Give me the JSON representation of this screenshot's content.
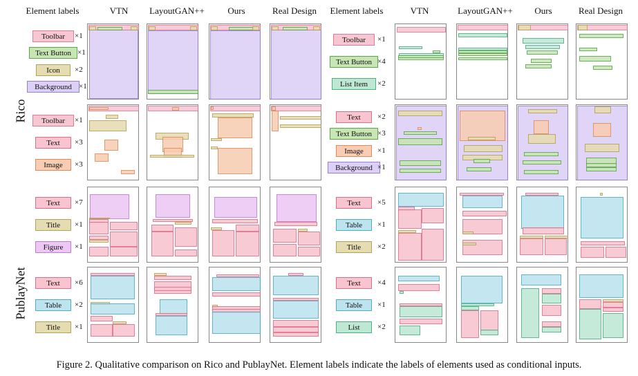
{
  "headers": {
    "left": [
      "Element labels",
      "VTN",
      "LayoutGAN++",
      "Ours",
      "Real Design"
    ],
    "right": [
      "Element labels",
      "VTN",
      "LayoutGAN++",
      "Ours",
      "Real Design"
    ]
  },
  "row_labels": [
    "Rico",
    "PublayNet"
  ],
  "colors": {
    "Toolbar": {
      "fill": "#f7c6d3",
      "stroke": "#e07a95"
    },
    "Text Button": {
      "fill": "#c8e6b4",
      "stroke": "#5aa84a"
    },
    "Icon": {
      "fill": "#e6dcb2",
      "stroke": "#b3a25a"
    },
    "Background": {
      "fill": "#ddd0f7",
      "stroke": "#9a7fd8"
    },
    "Text": {
      "fill": "#f8c4cf",
      "stroke": "#e06d88"
    },
    "Image": {
      "fill": "#f8cdb3",
      "stroke": "#e08a5a"
    },
    "List Item": {
      "fill": "#bfe8d4",
      "stroke": "#4cb084"
    },
    "Title": {
      "fill": "#e6dcb2",
      "stroke": "#b3a25a"
    },
    "Figure": {
      "fill": "#edc8f5",
      "stroke": "#c27ad8"
    },
    "Table": {
      "fill": "#bde3ee",
      "stroke": "#4aaec8"
    },
    "List": {
      "fill": "#bfe8d4",
      "stroke": "#4cb084"
    }
  },
  "caption": "Figure 2. Qualitative comparison on Rico and PublayNet. Element labels indicate the labels of elements used as conditional inputs.",
  "rows": [
    {
      "dataset": "Rico",
      "left": {
        "labels": [
          {
            "name": "Toolbar",
            "count": "×1"
          },
          {
            "name": "Text Button",
            "count": "×1"
          },
          {
            "name": "Icon",
            "count": "×2"
          },
          {
            "name": "Background",
            "count": "×1"
          }
        ]
      },
      "right": {
        "labels": [
          {
            "name": "Toolbar",
            "count": "×1"
          },
          {
            "name": "Text Button",
            "count": "×4"
          },
          {
            "name": "List Item",
            "count": "×2"
          }
        ]
      }
    },
    {
      "dataset": "Rico",
      "left": {
        "labels": [
          {
            "name": "Toolbar",
            "count": "×1"
          },
          {
            "name": "Text",
            "count": "×3"
          },
          {
            "name": "Image",
            "count": "×3"
          }
        ]
      },
      "right": {
        "labels": [
          {
            "name": "Text",
            "count": "×2"
          },
          {
            "name": "Text Button",
            "count": "×3"
          },
          {
            "name": "Image",
            "count": "×1"
          },
          {
            "name": "Background",
            "count": "×1"
          }
        ]
      }
    },
    {
      "dataset": "PublayNet",
      "left": {
        "labels": [
          {
            "name": "Text",
            "count": "×7"
          },
          {
            "name": "Title",
            "count": "×1"
          },
          {
            "name": "Figure",
            "count": "×1"
          }
        ]
      },
      "right": {
        "labels": [
          {
            "name": "Text",
            "count": "×5"
          },
          {
            "name": "Table",
            "count": "×1"
          },
          {
            "name": "Title",
            "count": "×2"
          }
        ]
      }
    },
    {
      "dataset": "PublayNet",
      "left": {
        "labels": [
          {
            "name": "Text",
            "count": "×6"
          },
          {
            "name": "Table",
            "count": "×2"
          },
          {
            "name": "Title",
            "count": "×1"
          }
        ]
      },
      "right": {
        "labels": [
          {
            "name": "Text",
            "count": "×4"
          },
          {
            "name": "Table",
            "count": "×1"
          },
          {
            "name": "List",
            "count": "×2"
          }
        ]
      }
    }
  ]
}
